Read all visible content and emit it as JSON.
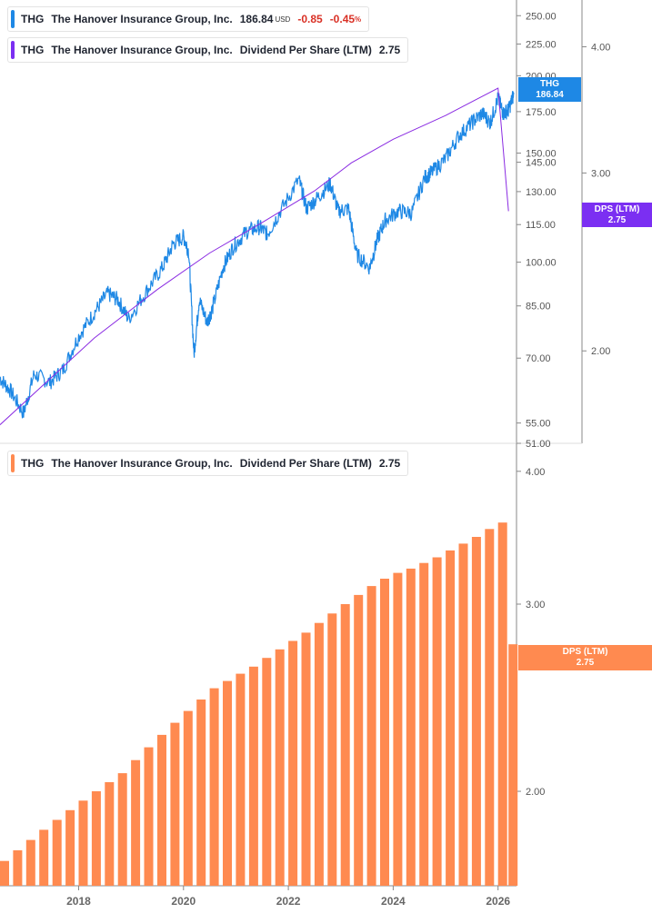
{
  "legends": {
    "price": {
      "ticker": "THG",
      "name": "The Hanover Insurance Group, Inc.",
      "price": "186.84",
      "currency": "USD",
      "change": "-0.85",
      "change_pct": "-0.45",
      "pct_sign": "%"
    },
    "dps_top": {
      "ticker": "THG",
      "name": "The Hanover Insurance Group, Inc.",
      "metric": "Dividend Per Share (LTM)",
      "value": "2.75"
    },
    "dps_bottom": {
      "ticker": "THG",
      "name": "The Hanover Insurance Group, Inc.",
      "metric": "Dividend Per Share (LTM)",
      "value": "2.75"
    }
  },
  "tags": {
    "price": {
      "label": "THG",
      "value": "186.84",
      "color": "#1e88e5"
    },
    "dps_top": {
      "label": "DPS (LTM)",
      "value": "2.75",
      "color": "#7b2ff2"
    },
    "dps_bottom": {
      "label": "DPS (LTM)",
      "value": "2.75",
      "color": "#ff8a50"
    }
  },
  "colors": {
    "price_line": "#1e88e5",
    "dps_line": "#8a2be2",
    "bars": "#ff8a50",
    "axis": "#888888"
  },
  "chart_data": [
    {
      "type": "line",
      "x_start": 2016.5,
      "x_end": 2026.3,
      "yscale": "log",
      "ylim": [
        51,
        265
      ],
      "yticks": [
        "250.00",
        "225.00",
        "200.00",
        "175.00",
        "150.00",
        "145.00",
        "130.00",
        "115.00",
        "100.00",
        "85.00",
        "70.00",
        "55.00",
        "51.00"
      ],
      "series": [
        {
          "name": "THG",
          "x": [
            2016.5,
            2016.7,
            2016.95,
            2017.15,
            2017.45,
            2017.7,
            2018.0,
            2018.3,
            2018.55,
            2018.75,
            2018.95,
            2019.3,
            2019.6,
            2019.8,
            2020.0,
            2020.1,
            2020.2,
            2020.3,
            2020.45,
            2020.55,
            2020.75,
            2020.95,
            2021.2,
            2021.45,
            2021.6,
            2021.85,
            2022.2,
            2022.35,
            2022.55,
            2022.8,
            2022.95,
            2023.15,
            2023.3,
            2023.55,
            2023.7,
            2023.85,
            2024.1,
            2024.35,
            2024.6,
            2024.75,
            2025.0,
            2025.25,
            2025.5,
            2025.7,
            2025.85,
            2026.0,
            2026.1,
            2026.2,
            2026.3
          ],
          "y": [
            65,
            62,
            57,
            66,
            64,
            67,
            76,
            83,
            89,
            87,
            81,
            90,
            98,
            107,
            110,
            104,
            71,
            87,
            80,
            84,
            98,
            106,
            112,
            114,
            111,
            121,
            136,
            122,
            127,
            134,
            121,
            122,
            103,
            98,
            109,
            117,
            121,
            120,
            137,
            140,
            147,
            160,
            168,
            174,
            168,
            184,
            174,
            176,
            186.84
          ]
        },
        {
          "name": "DPS (LTM)",
          "axis": "right",
          "ylim": [
            1.62,
            4.45
          ],
          "yticks": [
            "4.00",
            "3.00",
            "2.00"
          ],
          "x": [
            2016.5,
            2018.3,
            2019.5,
            2020.5,
            2021.5,
            2022.5,
            2023.2,
            2024.0,
            2025.0,
            2026.0,
            2026.2
          ],
          "y": [
            1.69,
            2.06,
            2.3,
            2.5,
            2.68,
            2.88,
            3.07,
            3.24,
            3.42,
            3.64,
            2.75
          ]
        }
      ]
    },
    {
      "type": "bar",
      "yscale": "log",
      "ylim": [
        1.63,
        4.25
      ],
      "yticks": [
        "4.00",
        "3.00",
        "2.00"
      ],
      "xticks": [
        "2018",
        "2020",
        "2022",
        "2024",
        "2026"
      ],
      "series": [
        {
          "name": "DPS (LTM)",
          "x": [
            2016.5,
            2016.75,
            2017.0,
            2017.25,
            2017.5,
            2017.75,
            2018.0,
            2018.25,
            2018.5,
            2018.75,
            2019.0,
            2019.25,
            2019.5,
            2019.75,
            2020.0,
            2020.25,
            2020.5,
            2020.75,
            2021.0,
            2021.25,
            2021.5,
            2021.75,
            2022.0,
            2022.25,
            2022.5,
            2022.75,
            2023.0,
            2023.25,
            2023.5,
            2023.75,
            2024.0,
            2024.25,
            2024.5,
            2024.75,
            2025.0,
            2025.25,
            2025.5,
            2025.75,
            2026.0,
            2026.2
          ],
          "values": [
            1.72,
            1.76,
            1.8,
            1.84,
            1.88,
            1.92,
            1.96,
            2.0,
            2.04,
            2.08,
            2.14,
            2.2,
            2.26,
            2.32,
            2.38,
            2.44,
            2.5,
            2.54,
            2.58,
            2.62,
            2.67,
            2.72,
            2.77,
            2.82,
            2.88,
            2.94,
            3.0,
            3.06,
            3.12,
            3.17,
            3.21,
            3.24,
            3.28,
            3.32,
            3.37,
            3.42,
            3.47,
            3.53,
            3.58,
            2.75
          ]
        }
      ]
    }
  ]
}
